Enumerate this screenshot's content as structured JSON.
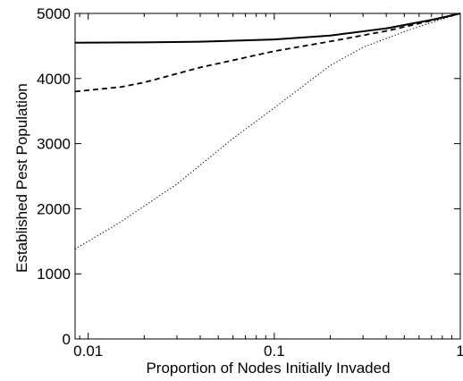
{
  "chart_data": {
    "type": "line",
    "title": "",
    "xlabel": "Proportion of Nodes Initially Invaded",
    "ylabel": "Established Pest Population",
    "xscale": "log",
    "xlim": [
      0.0085,
      1
    ],
    "ylim": [
      0,
      5000
    ],
    "xticks": [
      0.01,
      0.1,
      1
    ],
    "xtick_labels": [
      "0.01",
      "0.1",
      "1"
    ],
    "yticks": [
      0,
      1000,
      2000,
      3000,
      4000,
      5000
    ],
    "ytick_labels": [
      "0",
      "1000",
      "2000",
      "3000",
      "4000",
      "5000"
    ],
    "grid": false,
    "legend": "none",
    "series": [
      {
        "style": "solid",
        "color": "#000000",
        "x": [
          0.0085,
          0.02,
          0.04,
          0.1,
          0.2,
          0.4,
          0.7,
          1
        ],
        "y": [
          4550,
          4555,
          4565,
          4600,
          4660,
          4770,
          4900,
          5000
        ]
      },
      {
        "style": "dashed",
        "color": "#000000",
        "x": [
          0.0085,
          0.015,
          0.02,
          0.04,
          0.1,
          0.2,
          0.4,
          0.7,
          1
        ],
        "y": [
          3800,
          3870,
          3940,
          4170,
          4420,
          4570,
          4730,
          4890,
          5000
        ]
      },
      {
        "style": "dotted",
        "color": "#000000",
        "x": [
          0.0085,
          0.015,
          0.03,
          0.06,
          0.1,
          0.2,
          0.3,
          0.5,
          0.7,
          1
        ],
        "y": [
          1380,
          1800,
          2380,
          3080,
          3550,
          4200,
          4480,
          4720,
          4860,
          5000
        ]
      }
    ]
  }
}
